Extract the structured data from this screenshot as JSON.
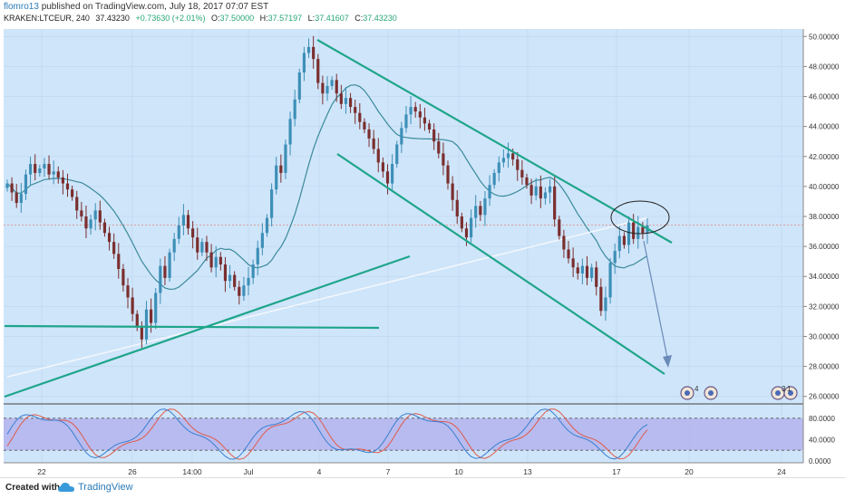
{
  "header": {
    "user": "flomro13",
    "published_text": "published on TradingView.com, July 18, 2017 07:07 EST"
  },
  "symbol_info": {
    "symbol": "KRAKEN:LTCEUR, 240",
    "last": "37.43230",
    "change": "+0.73630 (+2.01%)",
    "open_label": "O:",
    "open": "37.50000",
    "high_label": "H:",
    "high": "37.57197",
    "low_label": "L:",
    "low": "37.41607",
    "close_label": "C:",
    "close": "37.43230"
  },
  "price_axis": [
    "50.00000",
    "48.00000",
    "46.00000",
    "44.00000",
    "42.00000",
    "40.00000",
    "38.00000",
    "36.00000",
    "34.00000",
    "32.00000",
    "30.00000",
    "28.00000",
    "26.00000"
  ],
  "indicator_axis": [
    "80.0000",
    "40.0000",
    "0.0000"
  ],
  "time_axis": [
    "22",
    "26",
    "14:00",
    "Jul",
    "4",
    "7",
    "10",
    "13",
    "17",
    "20",
    "24"
  ],
  "event_badges": [
    "4",
    "3",
    "1"
  ],
  "footer": {
    "created_with": "Created with",
    "brand": "TradingView"
  },
  "colors": {
    "background": "#cfe5fa",
    "up_candle": "#3d8fb7",
    "down_candle": "#7a2e2e",
    "trendline": "#1fa58a",
    "ma": "#3a8a9a",
    "long_ma": "#f4f8fc",
    "stoch_k": "#3a7fd0",
    "stoch_d": "#e05a4a",
    "stoch_band": "#b4b4ec"
  },
  "chart_data": {
    "type": "candlestick",
    "ylim": [
      25.5,
      50.5
    ],
    "yticks": [
      50,
      48,
      46,
      44,
      42,
      40,
      38,
      36,
      34,
      32,
      30,
      28,
      26
    ],
    "last_price": 37.4323,
    "closes": [
      40.2,
      39.6,
      38.9,
      39.5,
      40.8,
      41.5,
      40.9,
      41.2,
      41.5,
      40.8,
      41.0,
      40.6,
      40.2,
      39.8,
      39.3,
      38.4,
      38.0,
      37.2,
      37.8,
      38.4,
      37.6,
      36.9,
      36.3,
      35.5,
      34.5,
      33.4,
      32.6,
      31.5,
      30.6,
      29.8,
      31.8,
      30.9,
      32.9,
      34.7,
      33.9,
      35.6,
      36.5,
      37.4,
      38.1,
      37.2,
      36.6,
      35.6,
      36.3,
      35.6,
      34.6,
      35.3,
      34.8,
      33.7,
      34.1,
      33.3,
      32.7,
      33.4,
      33.9,
      34.8,
      35.9,
      36.9,
      37.9,
      39.8,
      41.4,
      40.9,
      42.8,
      44.5,
      45.8,
      47.6,
      48.9,
      49.3,
      48.5,
      46.9,
      46.2,
      46.7,
      47.1,
      46.2,
      45.5,
      45.9,
      45.3,
      44.9,
      44.3,
      43.8,
      43.2,
      42.5,
      41.6,
      41.0,
      40.2,
      41.5,
      42.8,
      43.9,
      44.8,
      45.3,
      45.0,
      44.6,
      44.2,
      43.8,
      43.0,
      42.2,
      41.4,
      40.2,
      39.1,
      38.0,
      37.2,
      36.6,
      37.9,
      38.7,
      38.1,
      39.2,
      40.1,
      40.9,
      41.6,
      41.9,
      42.2,
      41.8,
      41.1,
      40.6,
      40.1,
      39.4,
      40.0,
      39.2,
      39.6,
      40.0,
      37.8,
      36.7,
      35.8,
      35.2,
      34.6,
      34.2,
      34.7,
      33.9,
      34.6,
      33.3,
      31.7,
      32.6,
      34.9,
      35.7,
      36.7,
      36.1,
      37.6,
      36.5,
      37.3,
      36.9,
      37.4
    ],
    "ma_label": "SMA",
    "trendlines_desc": "descending channel, support lines, projected drop arrow"
  }
}
